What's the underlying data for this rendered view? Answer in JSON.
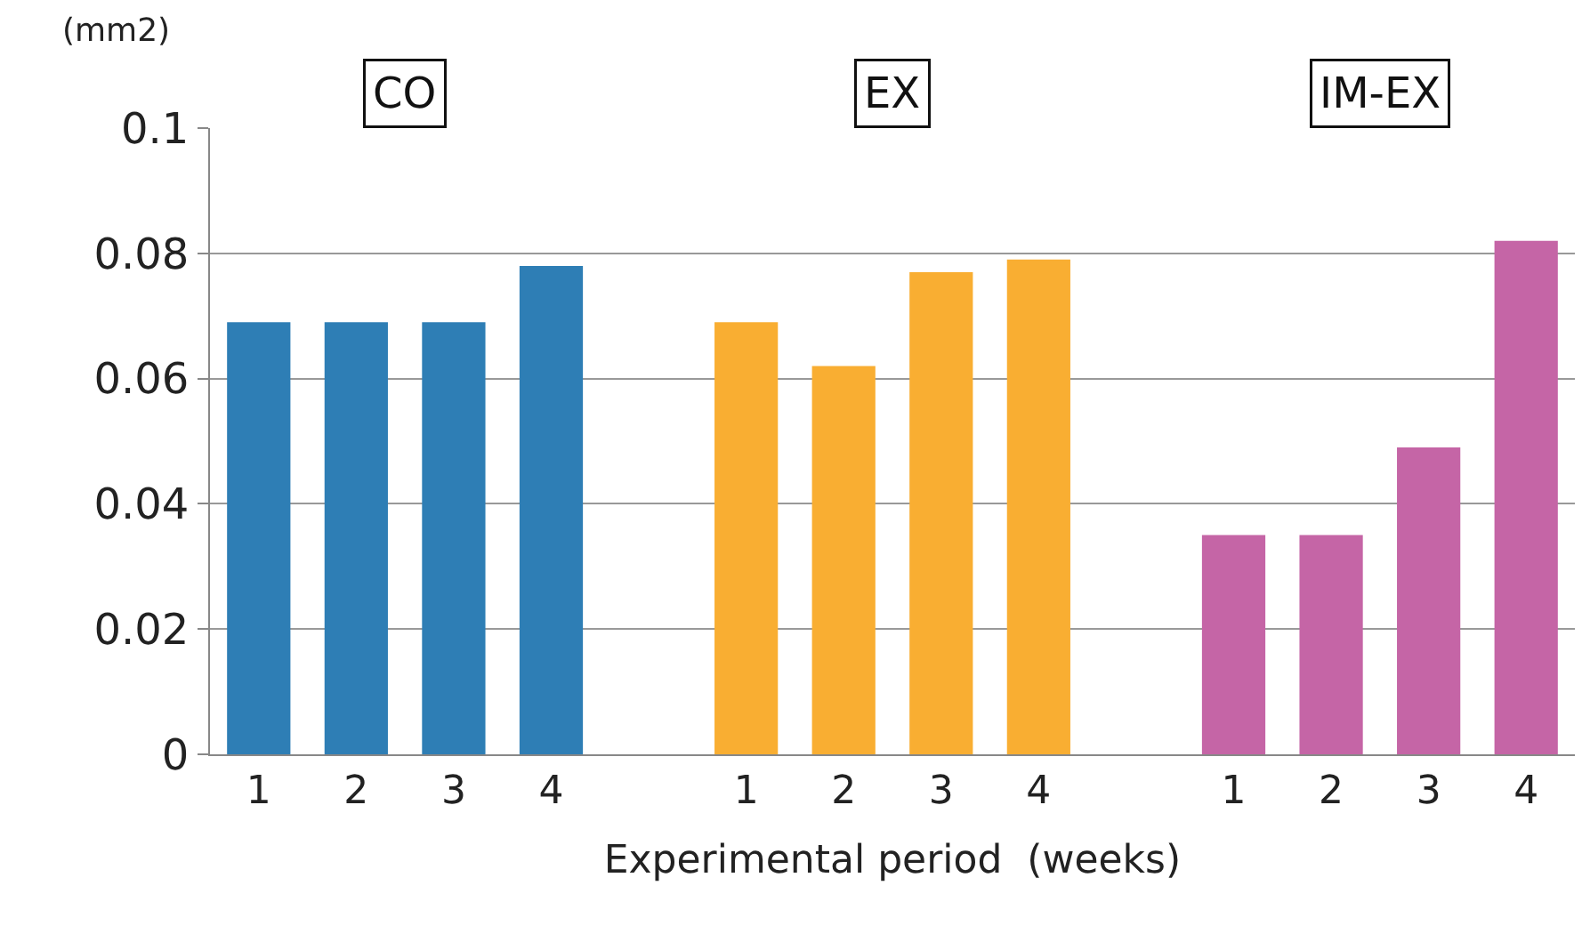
{
  "chart_data": {
    "type": "bar",
    "xlabel": "Experimental period  (weeks)",
    "ylabel": "(mm2)",
    "categories": [
      "1",
      "2",
      "3",
      "4",
      null,
      "1",
      "2",
      "3",
      "4",
      null,
      "1",
      "2",
      "3",
      "4"
    ],
    "values": [
      0.069,
      0.069,
      0.069,
      0.078,
      null,
      0.069,
      0.062,
      0.077,
      0.079,
      null,
      0.035,
      0.035,
      0.049,
      0.082
    ],
    "colors": [
      "#2e7eb5",
      "#2e7eb5",
      "#2e7eb5",
      "#2e7eb5",
      "#ffffff",
      "#f9ae32",
      "#f9ae32",
      "#f9ae32",
      "#f9ae32",
      "#ffffff",
      "#c565a6",
      "#c565a6",
      "#c565a6",
      "#c565a6"
    ],
    "annotations": [
      "CO",
      "EX",
      "IM-EX"
    ],
    "ylim": [
      0,
      0.1
    ],
    "yticks": [
      0,
      0.02,
      0.04,
      0.06,
      0.08,
      0.1
    ],
    "grid": "y"
  }
}
